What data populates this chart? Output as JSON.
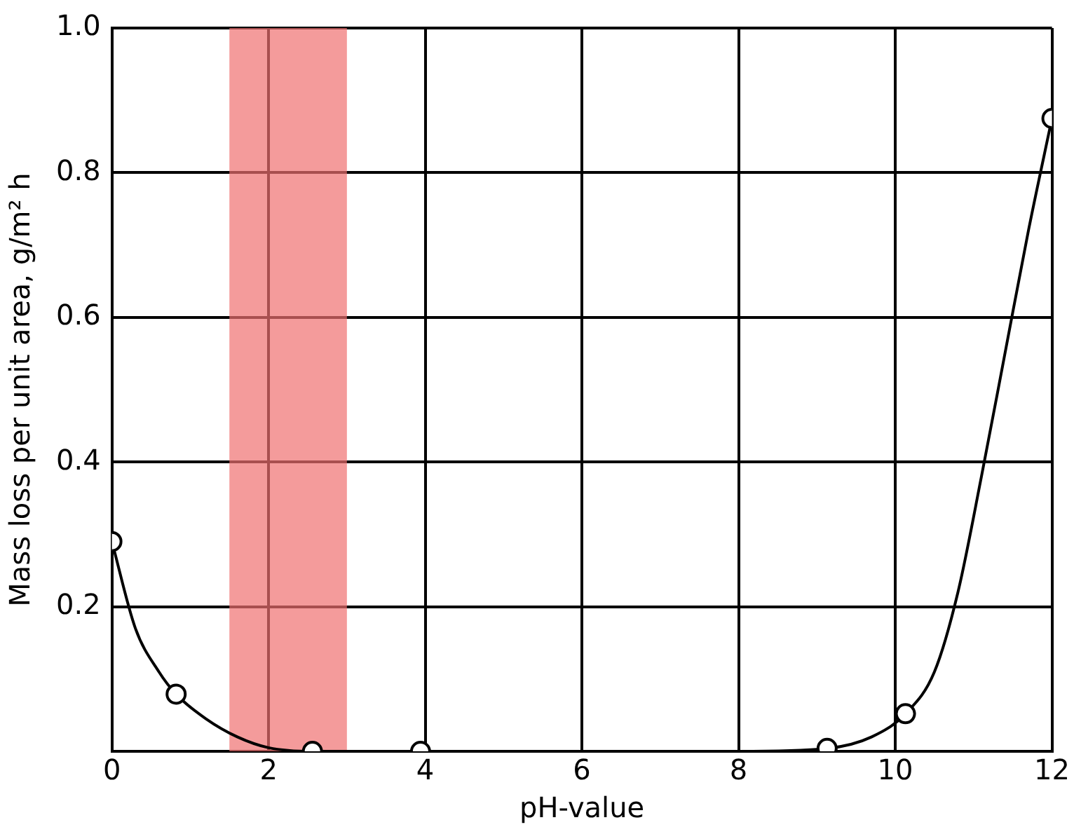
{
  "chart_data": {
    "type": "scatter",
    "xlabel": "pH-value",
    "ylabel": "Mass loss per unit area, g/m² h",
    "xlim": [
      0,
      12
    ],
    "ylim": [
      0,
      1.0
    ],
    "xticks": [
      0,
      2,
      4,
      6,
      8,
      10,
      12
    ],
    "yticks": [
      {
        "value": 0,
        "label": null
      },
      0.2,
      0.4,
      0.6,
      0.8,
      {
        "value": 1.0,
        "label": "1.0"
      }
    ],
    "grid": true,
    "legend": false,
    "bands": [
      {
        "axis": "x",
        "from": 1.5,
        "to": 3.0,
        "color": "#f07070"
      }
    ],
    "series": [
      {
        "type": "line",
        "color": "#000000",
        "marker": "none",
        "line_style": "solid",
        "x": [
          0,
          0.3,
          0.6,
          0.82,
          1.2,
          1.6,
          2,
          2.56,
          3.94,
          8,
          9.13,
          9.7,
          10.13,
          10.5,
          10.8,
          11.1,
          11.4,
          11.7,
          12
        ],
        "values": [
          0.29,
          0.17,
          0.11,
          0.079,
          0.045,
          0.02,
          0.005,
          0,
          0,
          0,
          0.004,
          0.02,
          0.052,
          0.11,
          0.22,
          0.38,
          0.55,
          0.72,
          0.875
        ]
      },
      {
        "type": "scatter",
        "color": "#000000",
        "marker": "circle",
        "x": [
          0,
          0.82,
          2.56,
          3.94,
          9.13,
          10.13,
          12
        ],
        "values": [
          0.29,
          0.079,
          0,
          0,
          0.004,
          0.052,
          0.875
        ]
      }
    ]
  }
}
